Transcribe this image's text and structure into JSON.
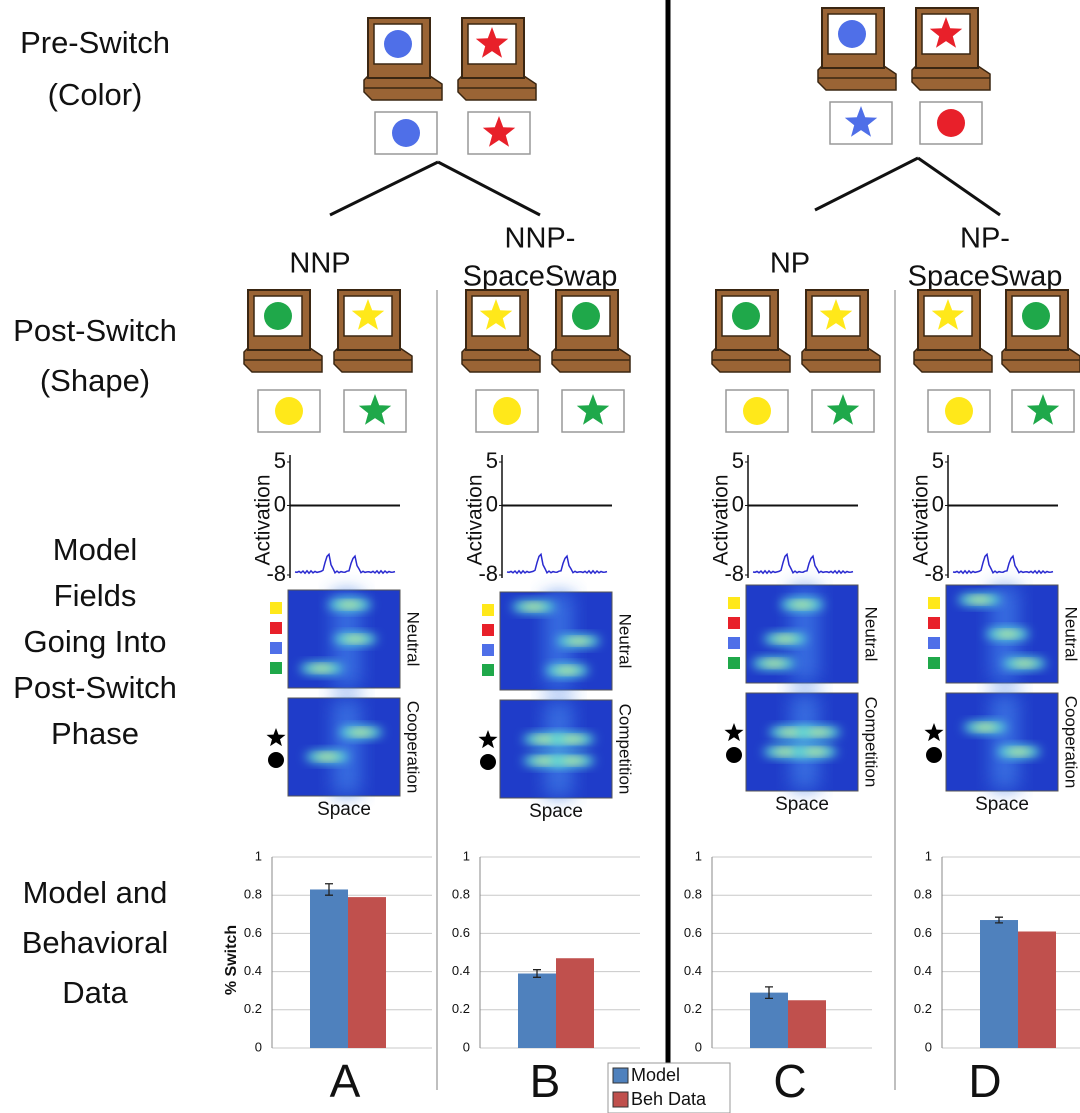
{
  "row_labels": {
    "pre_switch": [
      "Pre-Switch",
      "(Color)"
    ],
    "post_switch": [
      "Post-Switch",
      "(Shape)"
    ],
    "model_fields": [
      "Model",
      "Fields",
      "Going Into",
      "Post-Switch",
      "Phase"
    ],
    "data": [
      "Model and",
      "Behavioral",
      "Data"
    ]
  },
  "conditions": [
    {
      "title": [
        "NNP"
      ],
      "field_top": "Neutral",
      "field_bottom": "Cooperation",
      "x_label": "Space"
    },
    {
      "title": [
        "NNP-",
        "SpaceSwap"
      ],
      "field_top": "Neutral",
      "field_bottom": "Competition",
      "x_label": "Space"
    },
    {
      "title": [
        "NP"
      ],
      "field_top": "Neutral",
      "field_bottom": "Competition",
      "x_label": "Space"
    },
    {
      "title": [
        "NP-",
        "SpaceSwap"
      ],
      "field_top": "Neutral",
      "field_bottom": "Cooperation",
      "x_label": "Space"
    }
  ],
  "activation": {
    "y_label": "Activation",
    "ylim": [
      -8,
      5
    ],
    "yticks": [
      5,
      0,
      -8
    ]
  },
  "chart_data": [
    {
      "type": "bar",
      "panel": "A",
      "y_label": "% Switch",
      "ylim": [
        0,
        1
      ],
      "yticks": [
        0,
        0.2,
        0.4,
        0.6,
        0.8,
        1
      ],
      "grid": true,
      "categories": [
        null
      ],
      "series": [
        {
          "name": "Model",
          "color": "#4f81bd",
          "values": [
            0.83
          ],
          "errors": [
            0.03
          ]
        },
        {
          "name": "Beh Data",
          "color": "#c0504d",
          "values": [
            0.79
          ]
        }
      ]
    },
    {
      "type": "bar",
      "panel": "B",
      "ylim": [
        0,
        1
      ],
      "yticks": [
        0,
        0.2,
        0.4,
        0.6,
        0.8,
        1
      ],
      "grid": true,
      "categories": [
        null
      ],
      "series": [
        {
          "name": "Model",
          "color": "#4f81bd",
          "values": [
            0.39
          ],
          "errors": [
            0.02
          ]
        },
        {
          "name": "Beh Data",
          "color": "#c0504d",
          "values": [
            0.47
          ]
        }
      ]
    },
    {
      "type": "bar",
      "panel": "C",
      "ylim": [
        0,
        1
      ],
      "yticks": [
        0,
        0.2,
        0.4,
        0.6,
        0.8,
        1
      ],
      "grid": true,
      "categories": [
        null
      ],
      "series": [
        {
          "name": "Model",
          "color": "#4f81bd",
          "values": [
            0.29
          ],
          "errors": [
            0.03
          ]
        },
        {
          "name": "Beh Data",
          "color": "#c0504d",
          "values": [
            0.25
          ]
        }
      ]
    },
    {
      "type": "bar",
      "panel": "D",
      "ylim": [
        0,
        1
      ],
      "yticks": [
        0,
        0.2,
        0.4,
        0.6,
        0.8,
        1
      ],
      "grid": true,
      "categories": [
        null
      ],
      "series": [
        {
          "name": "Model",
          "color": "#4f81bd",
          "values": [
            0.67
          ],
          "errors": [
            0.015
          ]
        },
        {
          "name": "Beh Data",
          "color": "#c0504d",
          "values": [
            0.61
          ]
        }
      ]
    }
  ]
}
